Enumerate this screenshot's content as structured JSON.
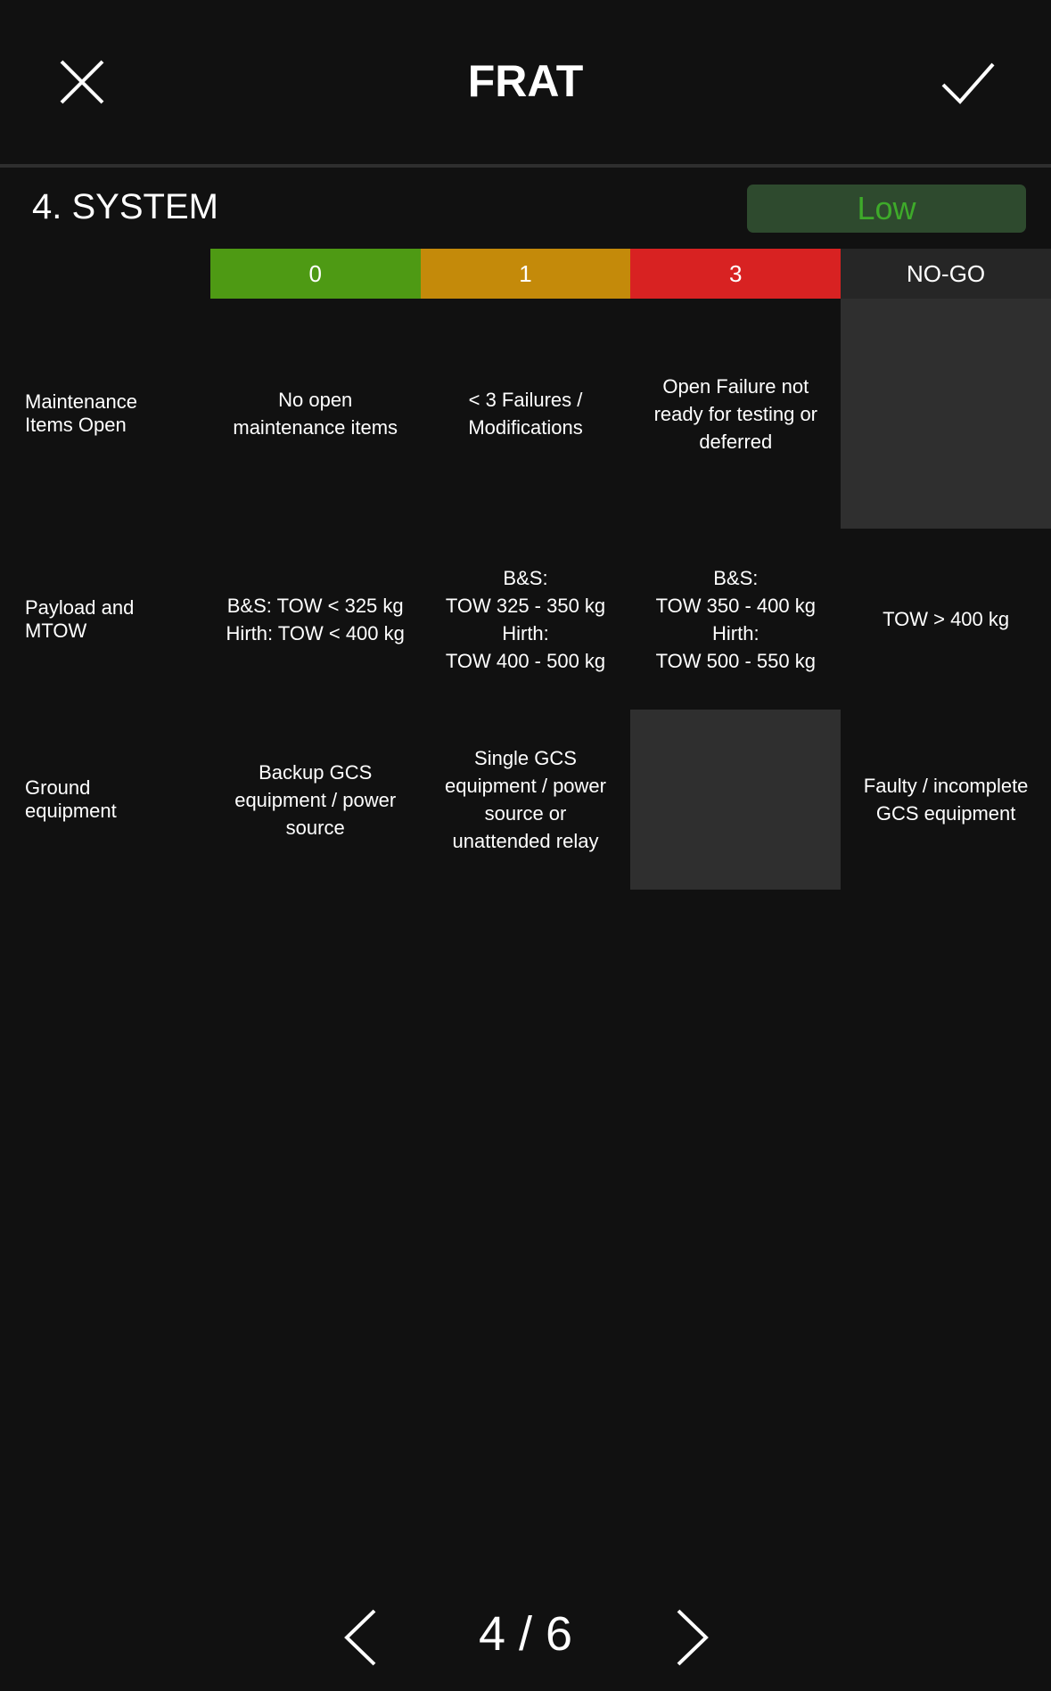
{
  "header": {
    "title": "FRAT",
    "close_icon": "close-icon",
    "confirm_icon": "check-icon"
  },
  "section": {
    "title": "4. SYSTEM",
    "risk_level": "Low",
    "risk_color": "#3eaa2a"
  },
  "columns": [
    {
      "label": "0",
      "color": "#4e9a14"
    },
    {
      "label": "1",
      "color": "#c48a0a"
    },
    {
      "label": "3",
      "color": "#d82222"
    },
    {
      "label": "NO-GO",
      "color": "#262626"
    }
  ],
  "rows": [
    {
      "label": "Maintenance\nItems Open",
      "cells": [
        "No open\nmaintenance items",
        "< 3 Failures /\nModifications",
        "Open Failure not\nready for testing or\ndeferred",
        ""
      ]
    },
    {
      "label": "Payload and\nMTOW",
      "cells": [
        "B&S: TOW < 325 kg\nHirth: TOW < 400 kg",
        "B&S:\nTOW 325 - 350 kg\nHirth:\nTOW 400 - 500 kg",
        "B&S:\nTOW 350 - 400 kg\nHirth:\nTOW 500 - 550 kg",
        "TOW > 400 kg"
      ]
    },
    {
      "label": "Ground\nequipment",
      "cells": [
        "Backup GCS\nequipment / power\nsource",
        "Single GCS\nequipment / power\nsource or\nunattended relay",
        "",
        "Faulty / incomplete\nGCS equipment"
      ]
    }
  ],
  "pagination": {
    "current": 4,
    "total": 6,
    "text": "4 / 6"
  }
}
